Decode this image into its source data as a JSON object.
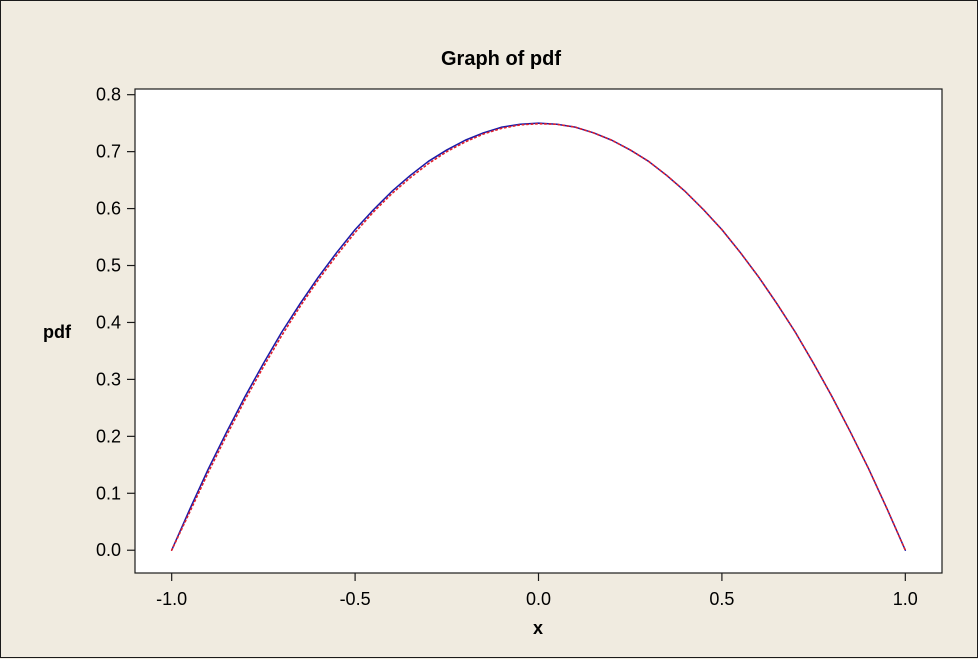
{
  "chart_data": {
    "type": "line",
    "title": "Graph of pdf",
    "xlabel": "x",
    "ylabel": "pdf",
    "xlim": [
      -1.1,
      1.1
    ],
    "ylim": [
      -0.04,
      0.81
    ],
    "xticks": [
      -1.0,
      -0.5,
      0.0,
      0.5,
      1.0
    ],
    "xtick_labels": [
      "-1.0",
      "-0.5",
      "0.0",
      "0.5",
      "1.0"
    ],
    "yticks": [
      0.0,
      0.1,
      0.2,
      0.3,
      0.4,
      0.5,
      0.6,
      0.7,
      0.8
    ],
    "ytick_labels": [
      "0.0",
      "0.1",
      "0.2",
      "0.3",
      "0.4",
      "0.5",
      "0.6",
      "0.7",
      "0.8"
    ],
    "grid": false,
    "legend": "none",
    "series": [
      {
        "style": "solid",
        "color": "#1a1aa8",
        "x": [
          -1.0,
          -0.95,
          -0.9,
          -0.85,
          -0.8,
          -0.75,
          -0.7,
          -0.65,
          -0.6,
          -0.55,
          -0.5,
          -0.45,
          -0.4,
          -0.35,
          -0.3,
          -0.25,
          -0.2,
          -0.15,
          -0.1,
          -0.05,
          0.0,
          0.05,
          0.1,
          0.15,
          0.2,
          0.25,
          0.3,
          0.35,
          0.4,
          0.45,
          0.5,
          0.55,
          0.6,
          0.65,
          0.7,
          0.75,
          0.8,
          0.85,
          0.9,
          0.95,
          1.0
        ],
        "y": [
          0.0,
          0.073,
          0.143,
          0.208,
          0.27,
          0.328,
          0.383,
          0.433,
          0.48,
          0.523,
          0.563,
          0.598,
          0.63,
          0.658,
          0.683,
          0.703,
          0.72,
          0.733,
          0.743,
          0.748,
          0.75,
          0.748,
          0.743,
          0.733,
          0.72,
          0.703,
          0.683,
          0.658,
          0.63,
          0.598,
          0.563,
          0.523,
          0.48,
          0.433,
          0.383,
          0.328,
          0.27,
          0.208,
          0.143,
          0.073,
          0.0
        ]
      },
      {
        "style": "dotted",
        "color": "#e0202c",
        "x": [
          -1.0,
          -0.95,
          -0.9,
          -0.85,
          -0.8,
          -0.75,
          -0.7,
          -0.65,
          -0.6,
          -0.55,
          -0.5,
          -0.45,
          -0.4,
          -0.35,
          -0.3,
          -0.25,
          -0.2,
          -0.15,
          -0.1,
          -0.05,
          0.0,
          0.05,
          0.1,
          0.15,
          0.2,
          0.25,
          0.3,
          0.35,
          0.4,
          0.45,
          0.5,
          0.55,
          0.6,
          0.65,
          0.7,
          0.75,
          0.8,
          0.85,
          0.9,
          0.95,
          1.0
        ],
        "y": [
          0.0,
          0.068,
          0.137,
          0.202,
          0.264,
          0.322,
          0.377,
          0.428,
          0.475,
          0.518,
          0.558,
          0.594,
          0.626,
          0.654,
          0.679,
          0.7,
          0.717,
          0.731,
          0.741,
          0.747,
          0.749,
          0.748,
          0.743,
          0.733,
          0.72,
          0.703,
          0.683,
          0.658,
          0.63,
          0.598,
          0.563,
          0.523,
          0.48,
          0.433,
          0.383,
          0.328,
          0.27,
          0.208,
          0.143,
          0.073,
          0.0
        ]
      }
    ]
  }
}
